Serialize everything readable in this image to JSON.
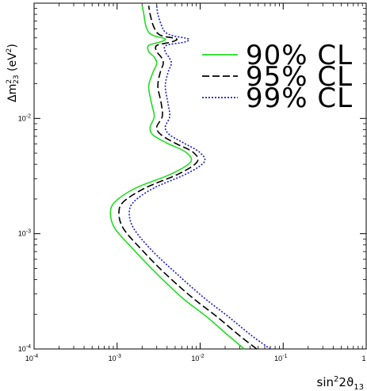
{
  "chart_data": {
    "type": "line",
    "xscale": "log",
    "yscale": "log",
    "xlim": [
      0.0001,
      1
    ],
    "ylim": [
      0.0001,
      0.1
    ],
    "xlabel": {
      "main": "sin",
      "sup": "2",
      "mid": "2ϑ",
      "sub": "13"
    },
    "ylabel": {
      "main": "Δm",
      "sup": "2",
      "sub": "23",
      "unit": " (eV",
      "unit_sup": "2",
      "close": ")"
    },
    "x_ticks": [
      {
        "value": 0.0001,
        "base": "10",
        "exp": "-4"
      },
      {
        "value": 0.001,
        "base": "10",
        "exp": "-3"
      },
      {
        "value": 0.01,
        "base": "10",
        "exp": "-2"
      },
      {
        "value": 0.1,
        "base": "10",
        "exp": "-1"
      },
      {
        "value": 1,
        "base": "1",
        "exp": ""
      }
    ],
    "y_ticks": [
      {
        "value": 0.0001,
        "base": "10",
        "exp": "-4"
      },
      {
        "value": 0.001,
        "base": "10",
        "exp": "-3"
      },
      {
        "value": 0.01,
        "base": "10",
        "exp": "-2"
      }
    ],
    "legend_position": "top-right",
    "series": [
      {
        "name": "90% CL",
        "color": "#22dd22",
        "dash": "solid",
        "points": [
          [
            0.034,
            0.0001
          ],
          [
            0.022,
            0.00013
          ],
          [
            0.012,
            0.00019
          ],
          [
            0.006,
            0.00028
          ],
          [
            0.003,
            0.00045
          ],
          [
            0.0016,
            0.00072
          ],
          [
            0.00095,
            0.0011
          ],
          [
            0.00083,
            0.0015
          ],
          [
            0.00095,
            0.0019
          ],
          [
            0.0017,
            0.0025
          ],
          [
            0.0045,
            0.0033
          ],
          [
            0.0077,
            0.0042
          ],
          [
            0.0067,
            0.0051
          ],
          [
            0.004,
            0.0061
          ],
          [
            0.0027,
            0.0072
          ],
          [
            0.0025,
            0.0084
          ],
          [
            0.0028,
            0.0104
          ],
          [
            0.0026,
            0.0135
          ],
          [
            0.0024,
            0.019
          ],
          [
            0.0027,
            0.025
          ],
          [
            0.003,
            0.03
          ],
          [
            0.0028,
            0.034
          ],
          [
            0.0024,
            0.038
          ],
          [
            0.0024,
            0.043
          ],
          [
            0.0033,
            0.046
          ],
          [
            0.0038,
            0.049
          ],
          [
            0.0028,
            0.052
          ],
          [
            0.0024,
            0.056
          ],
          [
            0.0022,
            0.065
          ],
          [
            0.0021,
            0.08
          ],
          [
            0.002,
            0.095
          ]
        ]
      },
      {
        "name": "95% CL",
        "color": "#000000",
        "dash": "long",
        "points": [
          [
            0.048,
            0.0001
          ],
          [
            0.03,
            0.00013
          ],
          [
            0.016,
            0.00019
          ],
          [
            0.008,
            0.00028
          ],
          [
            0.0038,
            0.00045
          ],
          [
            0.002,
            0.00072
          ],
          [
            0.0012,
            0.0011
          ],
          [
            0.00105,
            0.0015
          ],
          [
            0.0012,
            0.0019
          ],
          [
            0.0022,
            0.0025
          ],
          [
            0.0055,
            0.0033
          ],
          [
            0.0092,
            0.0042
          ],
          [
            0.0082,
            0.0051
          ],
          [
            0.005,
            0.0061
          ],
          [
            0.0034,
            0.0072
          ],
          [
            0.003,
            0.0084
          ],
          [
            0.0035,
            0.0104
          ],
          [
            0.0034,
            0.0135
          ],
          [
            0.0031,
            0.019
          ],
          [
            0.0033,
            0.025
          ],
          [
            0.0036,
            0.03
          ],
          [
            0.0034,
            0.034
          ],
          [
            0.003,
            0.038
          ],
          [
            0.003,
            0.043
          ],
          [
            0.0045,
            0.046
          ],
          [
            0.0052,
            0.049
          ],
          [
            0.0035,
            0.052
          ],
          [
            0.003,
            0.056
          ],
          [
            0.0027,
            0.065
          ],
          [
            0.0025,
            0.08
          ],
          [
            0.0024,
            0.095
          ]
        ]
      },
      {
        "name": "99% CL",
        "color": "#1a1acc",
        "dash": "dotted",
        "points": [
          [
            0.07,
            0.0001
          ],
          [
            0.042,
            0.00013
          ],
          [
            0.022,
            0.00019
          ],
          [
            0.011,
            0.00028
          ],
          [
            0.0052,
            0.00045
          ],
          [
            0.0026,
            0.00072
          ],
          [
            0.0016,
            0.0011
          ],
          [
            0.0014,
            0.0015
          ],
          [
            0.0016,
            0.0019
          ],
          [
            0.0028,
            0.0025
          ],
          [
            0.0068,
            0.0033
          ],
          [
            0.0112,
            0.0042
          ],
          [
            0.0098,
            0.0051
          ],
          [
            0.0064,
            0.0061
          ],
          [
            0.0043,
            0.0072
          ],
          [
            0.0038,
            0.0084
          ],
          [
            0.0043,
            0.0104
          ],
          [
            0.0041,
            0.0135
          ],
          [
            0.0038,
            0.019
          ],
          [
            0.0041,
            0.025
          ],
          [
            0.0045,
            0.03
          ],
          [
            0.0042,
            0.034
          ],
          [
            0.0038,
            0.038
          ],
          [
            0.0039,
            0.043
          ],
          [
            0.0065,
            0.046
          ],
          [
            0.0072,
            0.049
          ],
          [
            0.0048,
            0.052
          ],
          [
            0.0038,
            0.056
          ],
          [
            0.0034,
            0.065
          ],
          [
            0.0031,
            0.08
          ],
          [
            0.003,
            0.095
          ]
        ]
      }
    ]
  }
}
